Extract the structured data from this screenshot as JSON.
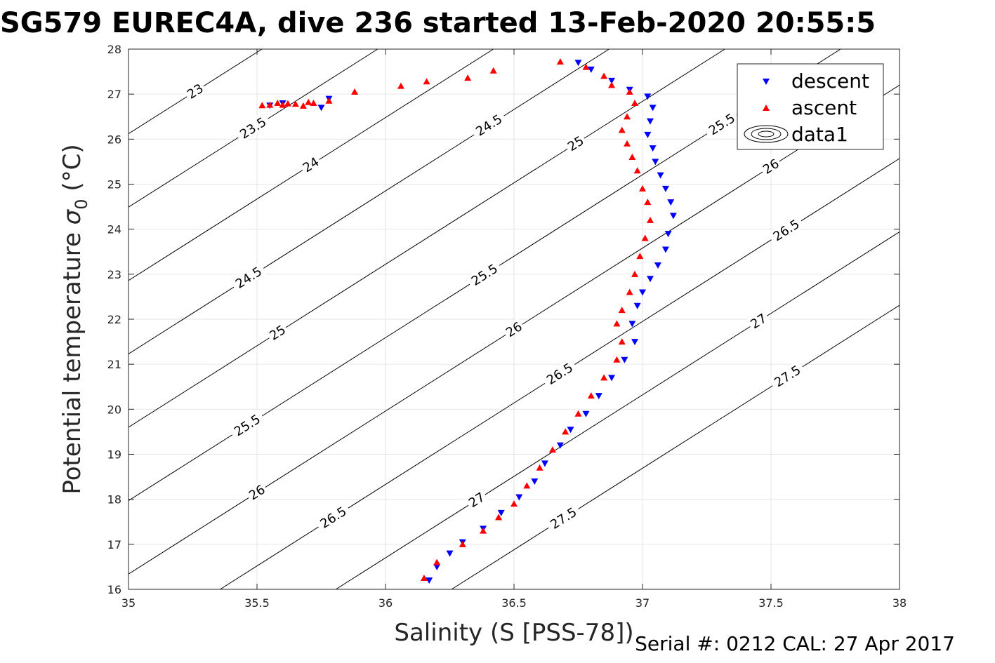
{
  "chart_data": {
    "type": "scatter",
    "title": "SG579 EUREC4A, dive 236 started 13-Feb-2020 20:55:5",
    "xlabel": "Salinity (S [PSS-78])",
    "ylabel_main": "Potential temperature ",
    "ylabel_sigma": "σ",
    "ylabel_sub": "0",
    "ylabel_unit": " (°C)",
    "xlim": [
      35,
      38
    ],
    "ylim": [
      16,
      28
    ],
    "xticks": [
      35,
      35.5,
      36,
      36.5,
      37,
      37.5,
      38
    ],
    "xtick_labels": [
      "35",
      "35.5",
      "36",
      "36.5",
      "37",
      "37.5",
      "38"
    ],
    "yticks": [
      16,
      17,
      18,
      19,
      20,
      21,
      22,
      23,
      24,
      25,
      26,
      27,
      28
    ],
    "ytick_labels": [
      "16",
      "17",
      "18",
      "19",
      "20",
      "21",
      "22",
      "23",
      "24",
      "25",
      "26",
      "27",
      "28"
    ],
    "grid": true,
    "legend_position": "top-right",
    "contours": {
      "levels": [
        23,
        23.5,
        24,
        24.5,
        25,
        25.5,
        26,
        26.5,
        27,
        27.5
      ],
      "level_labels": [
        "23",
        "23.5",
        "24",
        "24.5",
        "25",
        "25.5",
        "26",
        "26.5",
        "27",
        "27.5"
      ],
      "color": "#000000"
    },
    "series": [
      {
        "name": "descent",
        "marker": "triangle-down",
        "color": "#0000ff",
        "points": [
          [
            36.17,
            16.2
          ],
          [
            36.2,
            16.5
          ],
          [
            36.25,
            16.8
          ],
          [
            36.3,
            17.05
          ],
          [
            36.38,
            17.35
          ],
          [
            36.45,
            17.7
          ],
          [
            36.52,
            18.05
          ],
          [
            36.58,
            18.4
          ],
          [
            36.62,
            18.8
          ],
          [
            36.68,
            19.2
          ],
          [
            36.72,
            19.55
          ],
          [
            36.78,
            19.9
          ],
          [
            36.83,
            20.3
          ],
          [
            36.88,
            20.7
          ],
          [
            36.93,
            21.1
          ],
          [
            36.97,
            21.5
          ],
          [
            36.96,
            21.9
          ],
          [
            36.98,
            22.3
          ],
          [
            37.0,
            22.6
          ],
          [
            37.03,
            22.9
          ],
          [
            37.06,
            23.2
          ],
          [
            37.09,
            23.55
          ],
          [
            37.1,
            23.9
          ],
          [
            37.12,
            24.3
          ],
          [
            37.11,
            24.6
          ],
          [
            37.09,
            24.9
          ],
          [
            37.07,
            25.2
          ],
          [
            37.05,
            25.5
          ],
          [
            37.04,
            25.8
          ],
          [
            37.02,
            26.1
          ],
          [
            37.03,
            26.4
          ],
          [
            37.04,
            26.7
          ],
          [
            37.02,
            26.95
          ],
          [
            36.95,
            27.1
          ],
          [
            36.88,
            27.3
          ],
          [
            36.8,
            27.55
          ],
          [
            36.75,
            27.7
          ],
          [
            35.55,
            26.75
          ],
          [
            35.6,
            26.8
          ],
          [
            35.75,
            26.7
          ],
          [
            35.78,
            26.9
          ]
        ]
      },
      {
        "name": "ascent",
        "marker": "triangle-up",
        "color": "#ff0000",
        "points": [
          [
            36.15,
            16.25
          ],
          [
            36.2,
            16.6
          ],
          [
            36.3,
            17.0
          ],
          [
            36.38,
            17.3
          ],
          [
            36.44,
            17.6
          ],
          [
            36.5,
            17.9
          ],
          [
            36.55,
            18.3
          ],
          [
            36.6,
            18.7
          ],
          [
            36.65,
            19.1
          ],
          [
            36.7,
            19.5
          ],
          [
            36.75,
            19.9
          ],
          [
            36.8,
            20.3
          ],
          [
            36.85,
            20.7
          ],
          [
            36.9,
            21.1
          ],
          [
            36.92,
            21.5
          ],
          [
            36.9,
            21.9
          ],
          [
            36.92,
            22.2
          ],
          [
            36.95,
            22.6
          ],
          [
            36.97,
            23.0
          ],
          [
            36.99,
            23.4
          ],
          [
            37.01,
            23.8
          ],
          [
            37.03,
            24.2
          ],
          [
            37.02,
            24.6
          ],
          [
            37.0,
            24.9
          ],
          [
            36.98,
            25.3
          ],
          [
            36.96,
            25.6
          ],
          [
            36.94,
            25.9
          ],
          [
            36.92,
            26.2
          ],
          [
            36.94,
            26.5
          ],
          [
            36.97,
            26.8
          ],
          [
            36.95,
            27.05
          ],
          [
            36.88,
            27.2
          ],
          [
            36.85,
            27.4
          ],
          [
            36.78,
            27.6
          ],
          [
            36.68,
            27.72
          ],
          [
            36.42,
            27.52
          ],
          [
            36.32,
            27.36
          ],
          [
            36.16,
            27.28
          ],
          [
            36.06,
            27.18
          ],
          [
            35.88,
            27.05
          ],
          [
            35.78,
            26.85
          ],
          [
            35.72,
            26.8
          ],
          [
            35.65,
            26.78
          ],
          [
            35.6,
            26.76
          ],
          [
            35.55,
            26.76
          ],
          [
            35.52,
            26.75
          ],
          [
            35.58,
            26.8
          ],
          [
            35.62,
            26.79
          ],
          [
            35.68,
            26.74
          ],
          [
            35.7,
            26.82
          ]
        ]
      },
      {
        "name": "data1",
        "marker": "contour",
        "color": "#000000",
        "points": []
      }
    ]
  },
  "footer": {
    "serial_text": "Serial #: 0212  CAL: 27 Apr 2017"
  }
}
